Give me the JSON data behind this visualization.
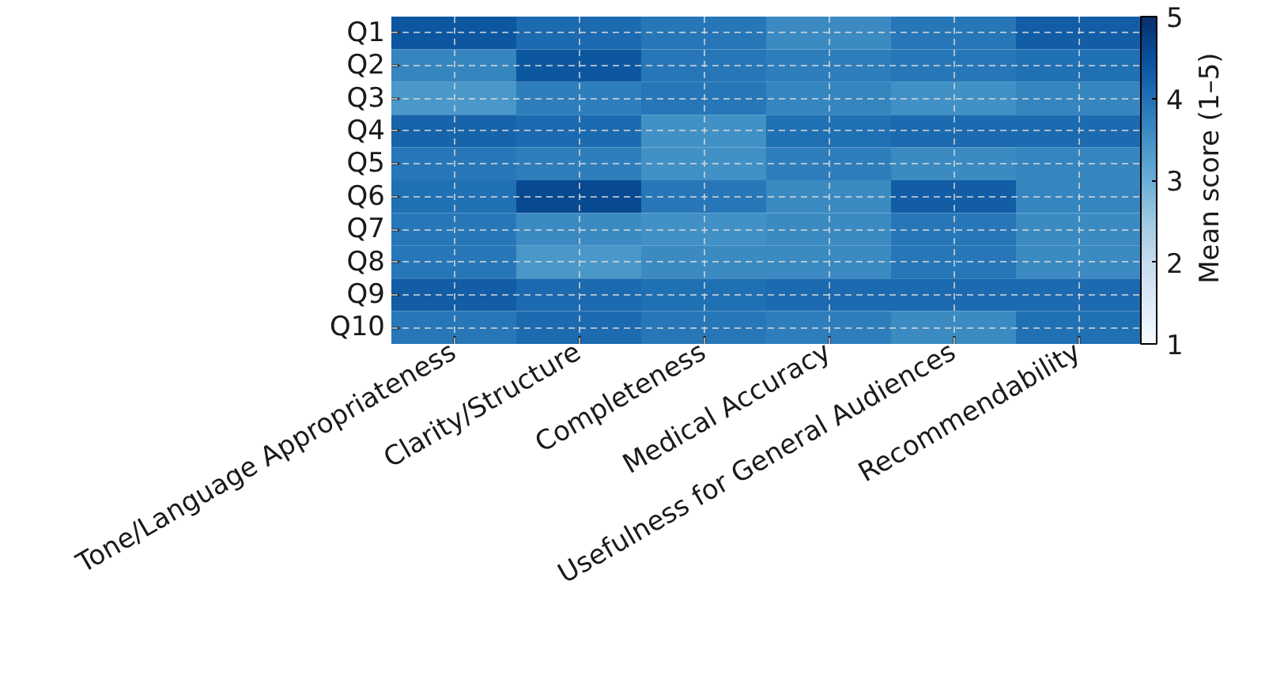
{
  "chart_data": {
    "type": "heatmap",
    "categories": [
      "Tone/Language Appropriateness",
      "Clarity/Structure",
      "Completeness",
      "Medical Accuracy",
      "Usefulness for General Audiences",
      "Recommendability"
    ],
    "y_categories": [
      "Q1",
      "Q2",
      "Q3",
      "Q4",
      "Q5",
      "Q6",
      "Q7",
      "Q8",
      "Q9",
      "Q10"
    ],
    "cells": [
      [
        4.4,
        4.1,
        3.9,
        3.6,
        3.9,
        4.3
      ],
      [
        3.7,
        4.4,
        3.9,
        3.8,
        3.9,
        4.0
      ],
      [
        3.4,
        3.8,
        3.9,
        3.7,
        3.5,
        3.7
      ],
      [
        4.2,
        4.1,
        3.5,
        4.0,
        4.1,
        4.1
      ],
      [
        3.9,
        3.8,
        3.5,
        3.8,
        3.6,
        3.7
      ],
      [
        4.0,
        4.6,
        3.9,
        3.6,
        4.3,
        3.7
      ],
      [
        3.9,
        3.6,
        3.5,
        3.6,
        3.9,
        3.6
      ],
      [
        3.9,
        3.4,
        3.6,
        3.6,
        3.9,
        3.6
      ],
      [
        4.3,
        4.1,
        4.0,
        4.1,
        4.1,
        4.1
      ],
      [
        3.9,
        4.1,
        3.9,
        3.8,
        3.6,
        4.0
      ]
    ],
    "clim": [
      1,
      5
    ],
    "cticks": [
      1,
      2,
      3,
      4,
      5
    ],
    "clabel": "Mean score (1–5)",
    "grid": true
  }
}
